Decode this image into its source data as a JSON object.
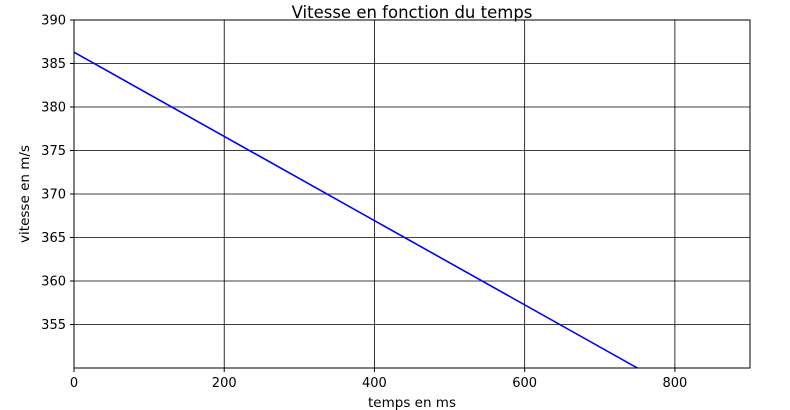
{
  "chart_data": {
    "type": "line",
    "title": "Vitesse en fonction du temps",
    "xlabel": "temps en ms",
    "ylabel": "vitesse en m/s",
    "xlim": [
      0,
      900
    ],
    "ylim": [
      350,
      390
    ],
    "x_ticks": [
      0,
      200,
      400,
      600,
      800
    ],
    "y_ticks": [
      355,
      360,
      365,
      370,
      375,
      380,
      385,
      390
    ],
    "grid": true,
    "series": [
      {
        "color": "#0000ff",
        "x": [
          0,
          750
        ],
        "y": [
          386.3,
          350.0
        ]
      }
    ]
  }
}
